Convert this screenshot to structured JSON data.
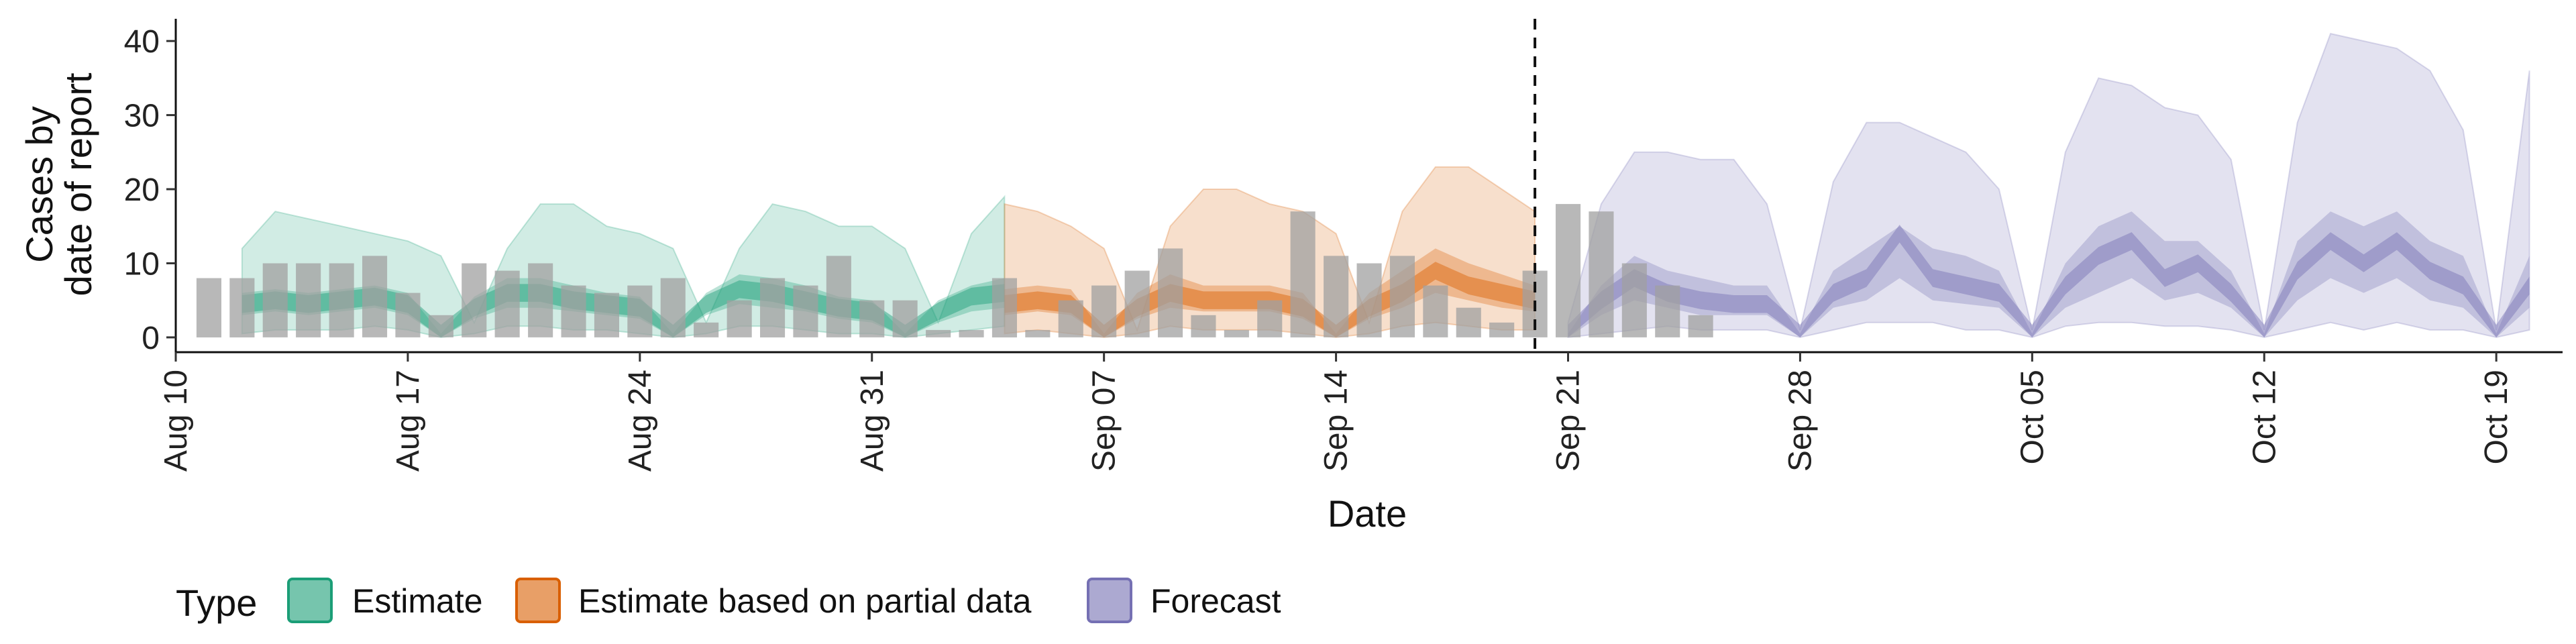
{
  "chart_data": {
    "type": "area",
    "title": "",
    "xlabel": "Date",
    "ylabel_lines": [
      "Cases by",
      "date of report"
    ],
    "xlim": [
      "2020-08-10",
      "2020-10-21"
    ],
    "ylim": [
      0,
      43
    ],
    "y_ticks": [
      0,
      10,
      20,
      30,
      40
    ],
    "x_ticks": [
      {
        "date": "2020-08-10",
        "label": "Aug 10"
      },
      {
        "date": "2020-08-17",
        "label": "Aug 17"
      },
      {
        "date": "2020-08-24",
        "label": "Aug 24"
      },
      {
        "date": "2020-08-31",
        "label": "Aug 31"
      },
      {
        "date": "2020-09-07",
        "label": "Sep 07"
      },
      {
        "date": "2020-09-14",
        "label": "Sep 14"
      },
      {
        "date": "2020-09-21",
        "label": "Sep 21"
      },
      {
        "date": "2020-09-28",
        "label": "Sep 28"
      },
      {
        "date": "2020-10-05",
        "label": "Oct 05"
      },
      {
        "date": "2020-10-12",
        "label": "Oct 12"
      },
      {
        "date": "2020-10-19",
        "label": "Oct 19"
      }
    ],
    "grid": false,
    "legend": {
      "title": "Type",
      "position": "bottom-left",
      "entries": [
        {
          "label": "Estimate",
          "color": "#1b9e77"
        },
        {
          "label": "Estimate based on partial data",
          "color": "#d95f02"
        },
        {
          "label": "Forecast",
          "color": "#7570b3"
        }
      ]
    },
    "forecast_start_line": "2020-09-20",
    "reported_cases": {
      "color": "#a0a0a0",
      "start_date": "2020-08-11",
      "values": [
        8,
        8,
        10,
        10,
        10,
        11,
        6,
        3,
        10,
        9,
        10,
        7,
        6,
        7,
        8,
        2,
        5,
        8,
        7,
        11,
        5,
        5,
        1,
        1,
        8,
        1,
        5,
        7,
        9,
        12,
        3,
        1,
        5,
        17,
        11,
        10,
        11,
        7,
        4,
        2,
        9,
        18,
        17,
        10,
        7,
        3
      ]
    },
    "series": [
      {
        "name": "Estimate",
        "color": "#1b9e77",
        "dates": [
          "2020-08-12",
          "2020-08-13",
          "2020-08-14",
          "2020-08-15",
          "2020-08-16",
          "2020-08-17",
          "2020-08-18",
          "2020-08-19",
          "2020-08-20",
          "2020-08-21",
          "2020-08-22",
          "2020-08-23",
          "2020-08-24",
          "2020-08-25",
          "2020-08-26",
          "2020-08-27",
          "2020-08-28",
          "2020-08-29",
          "2020-08-30",
          "2020-08-31",
          "2020-09-01",
          "2020-09-02",
          "2020-09-03",
          "2020-09-04"
        ],
        "median": [
          4.5,
          5,
          4.5,
          5,
          5.5,
          4.5,
          0.5,
          4,
          6,
          6,
          5,
          4.5,
          4,
          0.5,
          4.5,
          6.5,
          6,
          5,
          4,
          3.5,
          0.5,
          3.5,
          5.5,
          6
        ],
        "low50": [
          3,
          3.5,
          3,
          3.5,
          4,
          3,
          0,
          2.5,
          4,
          4,
          3.5,
          3,
          2.5,
          0,
          3,
          4.5,
          4,
          3.5,
          2.5,
          2,
          0,
          2,
          3.5,
          4
        ],
        "high50": [
          6,
          6.5,
          6,
          6.5,
          7,
          6,
          0.5,
          5.5,
          8,
          8,
          7,
          6,
          5.5,
          0.5,
          6,
          8.5,
          8,
          7,
          5.5,
          5,
          0.5,
          5,
          7,
          8
        ],
        "low90": [
          0.5,
          1,
          1,
          1,
          1.5,
          1,
          0,
          0.5,
          1.5,
          1.5,
          1,
          1,
          0.5,
          0,
          0.5,
          1.5,
          1.5,
          1,
          0.5,
          0.5,
          0,
          0.5,
          1,
          1.5
        ],
        "high90": [
          12,
          17,
          16,
          15,
          14,
          13,
          11,
          2,
          12,
          18,
          18,
          15,
          14,
          12,
          2,
          12,
          18,
          17,
          15,
          15,
          12,
          2,
          14,
          19
        ]
      },
      {
        "name": "Estimate based on partial data",
        "color": "#d95f02",
        "dates": [
          "2020-09-04",
          "2020-09-05",
          "2020-09-06",
          "2020-09-07",
          "2020-09-08",
          "2020-09-09",
          "2020-09-10",
          "2020-09-11",
          "2020-09-12",
          "2020-09-13",
          "2020-09-14",
          "2020-09-15",
          "2020-09-16",
          "2020-09-17",
          "2020-09-18",
          "2020-09-19",
          "2020-09-20"
        ],
        "median": [
          4.5,
          5,
          4.5,
          0.5,
          4,
          6,
          5,
          5,
          5,
          4,
          0.5,
          4,
          6,
          9,
          7,
          6,
          5
        ],
        "low50": [
          3,
          3.5,
          3,
          0,
          2.5,
          4,
          3.5,
          3.5,
          3.5,
          2.5,
          0,
          2.5,
          4,
          6,
          5,
          4,
          3.5
        ],
        "high50": [
          6.5,
          7,
          6.5,
          0.5,
          6,
          8.5,
          7,
          7,
          7,
          6,
          0.5,
          6,
          9,
          12,
          10,
          8.5,
          7
        ],
        "low90": [
          0.5,
          1,
          0.5,
          0,
          0.5,
          1.5,
          1,
          1,
          1,
          0.5,
          0,
          0.5,
          1.5,
          2,
          1.5,
          1,
          1
        ],
        "high90": [
          18,
          17,
          15,
          12,
          1,
          15,
          20,
          20,
          18,
          17,
          14,
          2,
          17,
          23,
          23,
          20,
          17
        ]
      },
      {
        "name": "Forecast",
        "color": "#7570b3",
        "dates": [
          "2020-09-21",
          "2020-09-22",
          "2020-09-23",
          "2020-09-24",
          "2020-09-25",
          "2020-09-26",
          "2020-09-27",
          "2020-09-28",
          "2020-09-29",
          "2020-09-30",
          "2020-10-01",
          "2020-10-02",
          "2020-10-03",
          "2020-10-04",
          "2020-10-05",
          "2020-10-06",
          "2020-10-07",
          "2020-10-08",
          "2020-10-09",
          "2020-10-10",
          "2020-10-11",
          "2020-10-12",
          "2020-10-13",
          "2020-10-14",
          "2020-10-15",
          "2020-10-16",
          "2020-10-17",
          "2020-10-18",
          "2020-10-19",
          "2020-10-20"
        ],
        "median": [
          0.5,
          5,
          8,
          6,
          5,
          4.5,
          4.5,
          0.5,
          6,
          8,
          14,
          8,
          7,
          6,
          0.5,
          7,
          11,
          13,
          8,
          10,
          6,
          0.5,
          9,
          13,
          10,
          13,
          9,
          7,
          0.5,
          7
        ],
        "low50": [
          0,
          3,
          5,
          4,
          3,
          3,
          3,
          0,
          4,
          5,
          8,
          5,
          4.5,
          4,
          0,
          4,
          6,
          8,
          5,
          6,
          4,
          0,
          5,
          8,
          6,
          8,
          5,
          4,
          0,
          4
        ],
        "high50": [
          0.5,
          7,
          11,
          9,
          8,
          7,
          7,
          0.5,
          9,
          12,
          15,
          12,
          11,
          9,
          0.5,
          10,
          15,
          17,
          13,
          13,
          9,
          0.5,
          13,
          17,
          15,
          17,
          13,
          11,
          0.5,
          11
        ],
        "low90": [
          0,
          0.5,
          1,
          1.5,
          1,
          1,
          1,
          0,
          1,
          2,
          2,
          2,
          1,
          1,
          0,
          1.5,
          2,
          2,
          1.5,
          1.5,
          1,
          0,
          1,
          2,
          1,
          2,
          1,
          1,
          0,
          1
        ],
        "high90": [
          2,
          18,
          25,
          25,
          24,
          24,
          18,
          1,
          21,
          29,
          29,
          27,
          25,
          20,
          1,
          25,
          35,
          34,
          31,
          30,
          24,
          1,
          29,
          41,
          40,
          39,
          36,
          28,
          1,
          36
        ]
      }
    ]
  }
}
